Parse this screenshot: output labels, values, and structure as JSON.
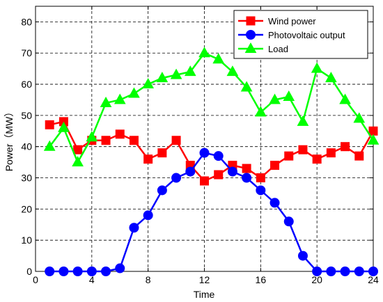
{
  "chart_data": {
    "type": "line",
    "title": "",
    "xlabel": "Time",
    "ylabel": "Power（MW）",
    "xlim": [
      0,
      24
    ],
    "ylim": [
      0,
      85
    ],
    "x_ticks": [
      0,
      4,
      8,
      12,
      16,
      20,
      24
    ],
    "y_ticks": [
      0,
      10,
      20,
      30,
      40,
      50,
      60,
      70,
      80
    ],
    "grid": "dashed",
    "legend_position": "top-right",
    "x": [
      1,
      2,
      3,
      4,
      5,
      6,
      7,
      8,
      9,
      10,
      11,
      12,
      13,
      14,
      15,
      16,
      17,
      18,
      19,
      20,
      21,
      22,
      23,
      24
    ],
    "series": [
      {
        "name": "Wind power",
        "color": "#ff0000",
        "marker": "square",
        "values": [
          47,
          48,
          39,
          42,
          42,
          44,
          42,
          36,
          38,
          42,
          34,
          29,
          31,
          34,
          33,
          30,
          34,
          37,
          39,
          36,
          38,
          40,
          37,
          45
        ]
      },
      {
        "name": "Photovoltaic output",
        "color": "#0000ff",
        "marker": "circle",
        "values": [
          0,
          0,
          0,
          0,
          0,
          1,
          14,
          18,
          26,
          30,
          32,
          38,
          37,
          32,
          30,
          26,
          22,
          16,
          5,
          0,
          0,
          0,
          0,
          0
        ]
      },
      {
        "name": "Load",
        "color": "#00ff00",
        "marker": "triangle",
        "values": [
          40,
          46,
          35,
          43,
          54,
          55,
          57,
          60,
          62,
          63,
          64,
          70,
          68,
          64,
          59,
          51,
          55,
          56,
          48,
          65,
          62,
          55,
          49,
          42
        ]
      }
    ]
  }
}
